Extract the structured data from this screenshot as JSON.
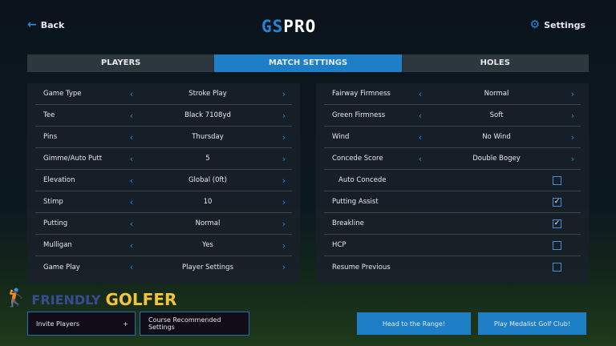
{
  "header": {
    "back": "Back",
    "logo_a": "GS",
    "logo_b": "PRO",
    "settings": "Settings"
  },
  "tabs": [
    {
      "label": "PLAYERS",
      "active": false
    },
    {
      "label": "MATCH SETTINGS",
      "active": true
    },
    {
      "label": "HOLES",
      "active": false
    }
  ],
  "left": [
    {
      "label": "Game Type",
      "value": "Stroke Play"
    },
    {
      "label": "Tee",
      "value": "Black 7108yd"
    },
    {
      "label": "Pins",
      "value": "Thursday"
    },
    {
      "label": "Gimme/Auto Putt",
      "value": "5"
    },
    {
      "label": "Elevation",
      "value": "Global (0ft)"
    },
    {
      "label": "Stimp",
      "value": "10"
    },
    {
      "label": "Putting",
      "value": "Normal"
    },
    {
      "label": "Mulligan",
      "value": "Yes"
    },
    {
      "label": "Game Play",
      "value": "Player Settings"
    }
  ],
  "right_selects": [
    {
      "label": "Fairway Firmness",
      "value": "Normal"
    },
    {
      "label": "Green Firmness",
      "value": "Soft"
    },
    {
      "label": "Wind",
      "value": "No Wind"
    },
    {
      "label": "Concede Score",
      "value": "Double Bogey"
    }
  ],
  "right_checks": [
    {
      "label": "Auto Concede",
      "checked": false,
      "indent": true
    },
    {
      "label": "Putting Assist",
      "checked": true
    },
    {
      "label": "Breakline",
      "checked": true
    },
    {
      "label": "HCP",
      "checked": false
    },
    {
      "label": "Resume Previous",
      "checked": false
    }
  ],
  "buttons": {
    "invite": "Invite Players",
    "invite_plus": "+",
    "course": "Course Recommended Settings",
    "range": "Head to the Range!",
    "play": "Play Medalist Golf Club!"
  },
  "watermark": {
    "line1": "FRIENDLY",
    "line2": "GOLFER"
  },
  "colors": {
    "accent": "#1e7ec6",
    "logo_gold": "#f2c43a"
  }
}
